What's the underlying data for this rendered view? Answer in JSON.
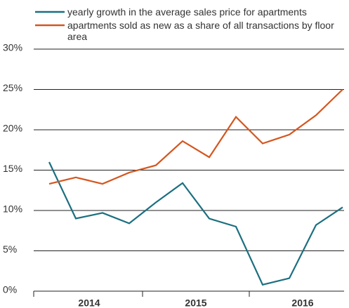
{
  "chart_data": {
    "type": "line",
    "categories": [
      null,
      null,
      null,
      null,
      null,
      null,
      null,
      null,
      null,
      null,
      null,
      null
    ],
    "year_labels": [
      "2014",
      "2015",
      "2016"
    ],
    "series": [
      {
        "name": "yearly growth in the average sales price for apartments",
        "color": "#1b6f80",
        "values": [
          16.0,
          9.0,
          9.7,
          8.4,
          11.0,
          13.4,
          9.0,
          8.0,
          0.8,
          1.6,
          8.2,
          10.4
        ]
      },
      {
        "name": "apartments sold as new as a share of all transactions by floor area",
        "color": "#d4561f",
        "values": [
          13.3,
          14.1,
          13.3,
          14.7,
          15.6,
          18.6,
          16.6,
          21.6,
          18.3,
          19.4,
          21.8,
          25.0
        ]
      }
    ],
    "ylim": [
      0,
      30
    ],
    "yticks": [
      {
        "value": 0,
        "label": "0%"
      },
      {
        "value": 5,
        "label": "5%"
      },
      {
        "value": 10,
        "label": "10%"
      },
      {
        "value": 15,
        "label": "15%"
      },
      {
        "value": 20,
        "label": "20%"
      },
      {
        "value": 25,
        "label": "25%"
      },
      {
        "value": 30,
        "label": "30%"
      }
    ],
    "grid": true
  }
}
